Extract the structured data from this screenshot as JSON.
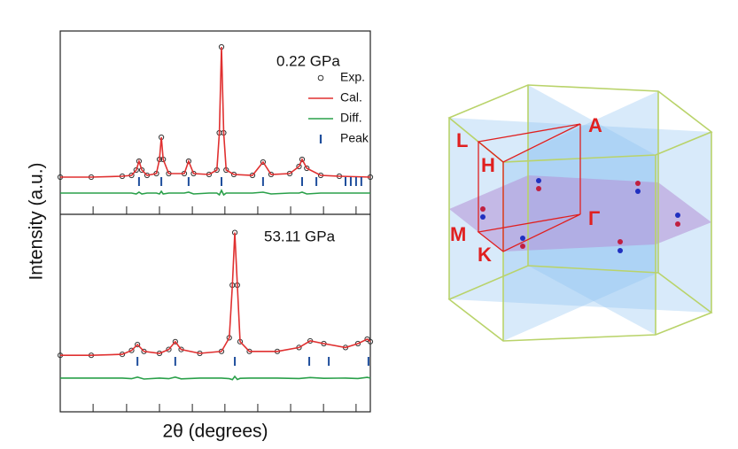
{
  "x_label": "2θ (degrees)",
  "y_label": "Intensity (a.u.)",
  "chart_data": [
    {
      "type": "line",
      "annotation": "0.22 GPa",
      "legend": true,
      "xlim": [
        0,
        100
      ],
      "ylim": [
        0,
        100
      ],
      "xticks": [
        10.6,
        21.4,
        32,
        42.6,
        53.1,
        63.7,
        74.3,
        84.9,
        95.4
      ],
      "x": [
        0,
        10,
        20,
        23,
        24.5,
        25.4,
        26.3,
        28,
        31,
        32,
        32.6,
        33.2,
        35,
        40,
        41.4,
        43,
        48,
        50.5,
        51.3,
        52,
        52.7,
        53.5,
        56,
        62,
        65.4,
        68,
        74,
        77,
        78,
        79.5,
        84,
        90,
        100
      ],
      "series": [
        {
          "name": "Exp.",
          "color": "#333333",
          "marker": "circle",
          "values": [
            20,
            20,
            20.5,
            21,
            24,
            29,
            24,
            21,
            22,
            30,
            42.5,
            30,
            22,
            22,
            29,
            22,
            21.5,
            24,
            45,
            93.5,
            45,
            24,
            21.5,
            21,
            28.5,
            21.5,
            22,
            26,
            30,
            25,
            21,
            20.5,
            20
          ]
        },
        {
          "name": "Cal.",
          "color": "#e03030",
          "values": [
            20,
            20,
            20.5,
            21,
            24,
            29,
            24,
            21,
            22,
            30,
            42.5,
            30,
            22,
            22,
            29,
            22,
            21.5,
            24,
            45,
            93.5,
            45,
            24,
            21.5,
            21,
            28.5,
            21.5,
            22,
            26,
            30,
            25,
            21,
            20.5,
            20
          ]
        },
        {
          "name": "Diff.",
          "color": "#2aa04a",
          "values": [
            11,
            11,
            11,
            11,
            10.5,
            11.5,
            10.5,
            11,
            11,
            10.5,
            12,
            10.5,
            11,
            11,
            11.5,
            10.5,
            11,
            11,
            10,
            12.5,
            10,
            11,
            11,
            11,
            11.5,
            10.5,
            11,
            11,
            11.5,
            10.5,
            11,
            11,
            11
          ]
        },
        {
          "name": "Peak",
          "color": "#1f4e9c",
          "x": [
            25.4,
            32.6,
            41.4,
            52,
            65.4,
            78,
            82.6,
            92,
            93.7,
            95.4,
            97.1
          ]
        }
      ]
    },
    {
      "type": "line",
      "annotation": "53.11 GPa",
      "legend": false,
      "xlim": [
        0,
        100
      ],
      "ylim": [
        0,
        100
      ],
      "xticks": [
        10.6,
        21.4,
        32,
        42.6,
        53.1,
        63.7,
        74.3,
        84.9,
        95.4
      ],
      "x": [
        0,
        10,
        20,
        23,
        24.9,
        27,
        32,
        35,
        37.1,
        39,
        45,
        52,
        54.5,
        55.5,
        56.3,
        57.1,
        58,
        61,
        70,
        77,
        80.6,
        85,
        92,
        96,
        99,
        100
      ],
      "series": [
        {
          "name": "Exp.",
          "color": "#333333",
          "marker": "circle",
          "values": [
            29,
            29,
            29.5,
            31.5,
            34.5,
            31,
            30,
            32,
            36,
            32,
            30,
            31,
            38,
            65,
            92,
            65,
            36,
            31,
            31,
            33,
            36.4,
            35,
            33,
            35,
            37.3,
            36
          ]
        },
        {
          "name": "Cal.",
          "color": "#e03030",
          "values": [
            29,
            29,
            29.5,
            31.5,
            34.5,
            31,
            30,
            32,
            36,
            32,
            30,
            31,
            38,
            65,
            92,
            65,
            36,
            31,
            31,
            33,
            36.4,
            35,
            33,
            35,
            37.3,
            36
          ]
        },
        {
          "name": "Diff.",
          "color": "#2aa04a",
          "values": [
            17.3,
            17.3,
            17.3,
            17,
            17.8,
            16.8,
            17.3,
            17,
            17.8,
            16.9,
            17.3,
            17.3,
            17,
            16.5,
            18.2,
            16.6,
            17.2,
            17.3,
            17.3,
            17.1,
            17.6,
            17.2,
            17.3,
            17.1,
            17.7,
            17.3
          ]
        },
        {
          "name": "Peak",
          "color": "#1f4e9c",
          "x": [
            24.9,
            37.1,
            56.3,
            80.3,
            86.6,
            99.4
          ]
        }
      ]
    }
  ],
  "brillouin_zone": {
    "labels": [
      "L",
      "H",
      "A",
      "M",
      "K",
      "Γ"
    ]
  }
}
